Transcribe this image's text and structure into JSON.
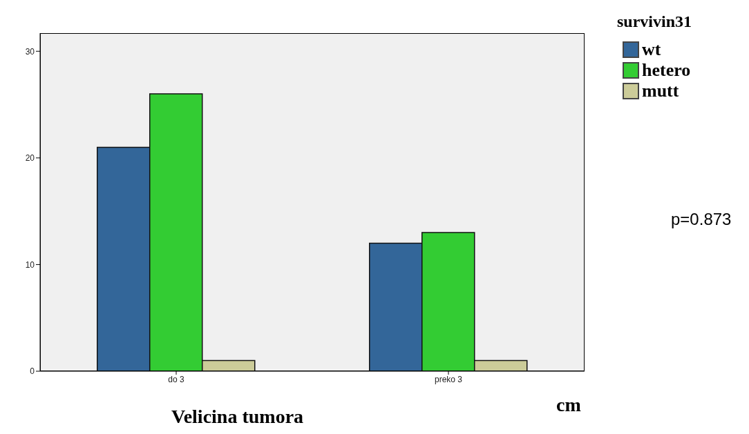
{
  "chart_data": {
    "type": "bar",
    "xlabel": "Velicina tumora",
    "legend_title": "survivin31",
    "categories": [
      "do 3",
      "preko 3"
    ],
    "series": [
      {
        "name": "wt",
        "color": "#336699",
        "values": [
          21,
          12
        ]
      },
      {
        "name": "hetero",
        "color": "#33cc33",
        "values": [
          26,
          13
        ]
      },
      {
        "name": "mutt",
        "color": "#cccc99",
        "values": [
          1,
          1
        ]
      }
    ],
    "ylim": [
      0,
      31.7
    ],
    "yticks": [
      0,
      10,
      20,
      30
    ],
    "grid": false,
    "legend": "top right",
    "annotations": [
      "cm",
      "p=0.873"
    ]
  }
}
